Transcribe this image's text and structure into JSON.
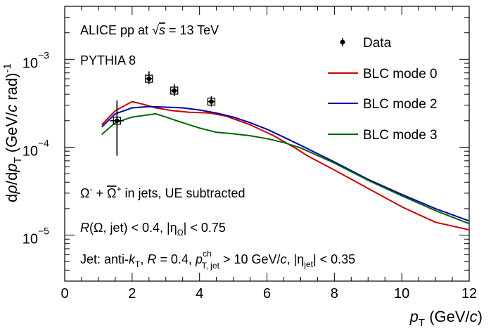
{
  "chart_data": {
    "type": "line",
    "xlabel": {
      "base": "p",
      "sub": "T",
      "unit_pre": " (GeV/",
      "unit_var": "c",
      "unit_post": ")"
    },
    "ylabel": {
      "p1": "d",
      "p2": "ρ",
      "p3": "/d",
      "p4": "p",
      "sub": "T",
      "p5": " (GeV/",
      "p6": "c",
      "p7": " rad)",
      "sup": "-1"
    },
    "xlim": [
      0,
      12
    ],
    "ylim": [
      3e-06,
      0.004
    ],
    "yscale": "log",
    "x_ticks": [
      0,
      2,
      4,
      6,
      8,
      10,
      12
    ],
    "x_tick_labels": [
      "0",
      "2",
      "4",
      "6",
      "8",
      "10",
      "12"
    ],
    "y_ticks": [
      {
        "value": 0.001,
        "base": "10",
        "exp": "−3"
      },
      {
        "value": 0.0001,
        "base": "10",
        "exp": "−4"
      },
      {
        "value": 1e-05,
        "base": "10",
        "exp": "−5"
      }
    ],
    "annotations": {
      "alice": {
        "a": "ALICE pp at ",
        "sqrt": "√",
        "s": "s",
        "b": " = 13 TeV"
      },
      "pythia": "PYTHIA 8",
      "particle": {
        "om": "Ω",
        "m": "-",
        "plus": " + ",
        "omb": "Ω",
        "p": "+",
        "rest": " in jets, UE subtracted"
      },
      "cut": {
        "R": "R",
        "a": "(Ω, jet) < 0.4, |η",
        "sub": "Ω",
        "b": "| < 0.75"
      },
      "jet": {
        "a": "Jet: anti-",
        "k": "k",
        "kT": "T",
        "b": ", ",
        "R": "R",
        "c": " = 0.4, ",
        "p": "p",
        "sup": "ch",
        "sub": "T, jet",
        "d": " > 10 GeV/",
        "cv": "c",
        "e": ", |η",
        "esub": "jet",
        "f": "| < 0.35"
      }
    },
    "legend": {
      "position": "top-right",
      "entries": [
        "Data",
        "BLC mode 0",
        "BLC mode 2",
        "BLC mode 3"
      ]
    },
    "data_points": {
      "name": "Data",
      "x": [
        1.55,
        2.5,
        3.25,
        4.35
      ],
      "y": [
        0.0002,
        0.0006,
        0.00044,
        0.00033
      ],
      "x_err": [
        0.2,
        0.1,
        0.1,
        0.1
      ],
      "y_lo": [
        8e-05,
        0.00052,
        0.00038,
        0.00029
      ],
      "y_hi": [
        0.00034,
        0.00073,
        0.00052,
        0.00038
      ]
    },
    "series": [
      {
        "name": "BLC mode 0",
        "color": "#cc0000",
        "x": [
          1.1,
          1.5,
          2.0,
          2.3,
          2.7,
          3.2,
          3.7,
          4.3,
          4.8,
          5.5,
          6.2,
          6.8,
          7.2,
          8.0,
          9.0,
          10.0,
          11.0,
          12.0
        ],
        "y": [
          0.00018,
          0.00026,
          0.00033,
          0.00031,
          0.00028,
          0.00026,
          0.00025,
          0.000245,
          0.000225,
          0.00018,
          0.000135,
          0.0001,
          8e-05,
          5.5e-05,
          3.4e-05,
          2.1e-05,
          1.4e-05,
          1.15e-05
        ]
      },
      {
        "name": "BLC mode 2",
        "color": "#0000aa",
        "x": [
          1.1,
          1.5,
          2.0,
          2.5,
          3.0,
          3.5,
          4.0,
          4.5,
          5.0,
          5.5,
          6.0,
          6.5,
          7.0,
          8.0,
          9.0,
          10.0,
          11.0,
          12.0
        ],
        "y": [
          0.00017,
          0.00024,
          0.00028,
          0.00029,
          0.000285,
          0.00028,
          0.000265,
          0.000245,
          0.00022,
          0.00019,
          0.00016,
          0.00013,
          0.000105,
          6.8e-05,
          4.3e-05,
          2.9e-05,
          2e-05,
          1.45e-05
        ]
      },
      {
        "name": "BLC mode 3",
        "color": "#006600",
        "x": [
          1.1,
          1.5,
          2.0,
          2.7,
          3.0,
          3.5,
          4.0,
          4.5,
          5.0,
          5.5,
          6.0,
          6.5,
          7.0,
          8.0,
          9.0,
          10.0,
          11.0,
          12.0
        ],
        "y": [
          0.00014,
          0.00019,
          0.00022,
          0.00024,
          0.00022,
          0.00019,
          0.000165,
          0.000148,
          0.000142,
          0.000135,
          0.000125,
          0.000113,
          9.8e-05,
          6.6e-05,
          4.2e-05,
          2.8e-05,
          1.9e-05,
          1.35e-05
        ]
      }
    ]
  }
}
